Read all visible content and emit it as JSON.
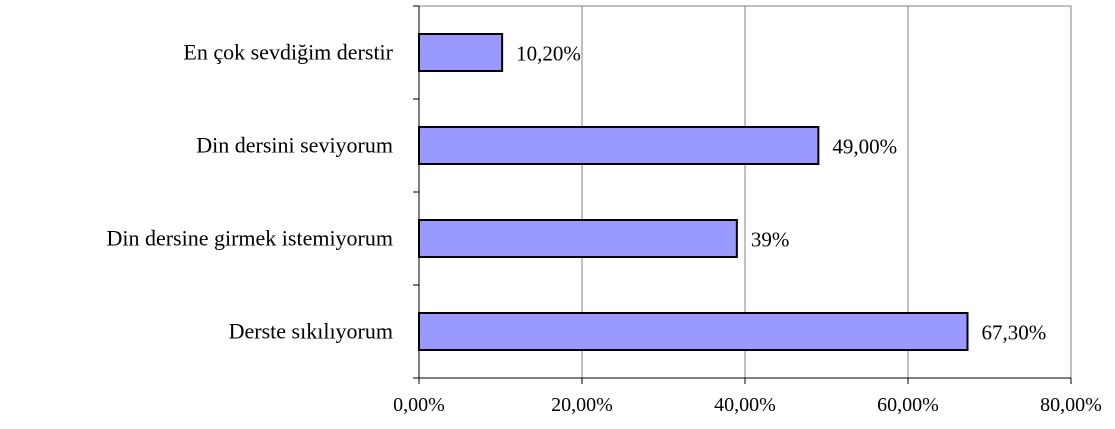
{
  "chart_data": {
    "type": "bar",
    "orientation": "horizontal",
    "categories": [
      "En çok sevdiğim derstir",
      "Din dersini seviyorum",
      "Din dersine girmek istemiyorum",
      "Derste sıkılıyorum"
    ],
    "values": [
      10.2,
      49.0,
      39.0,
      67.3
    ],
    "data_labels": [
      "10,20%",
      "49,00%",
      "39%",
      "67,30%"
    ],
    "x_ticks": [
      0,
      20,
      40,
      60,
      80
    ],
    "x_tick_labels": [
      "0,00%",
      "20,00%",
      "40,00%",
      "60,00%",
      "80,00%"
    ],
    "xlim": [
      0,
      80
    ],
    "grid": "vertical",
    "legend": "none",
    "colors": {
      "bar_fill": "#9999ff",
      "bar_stroke": "#000000",
      "grid": "#808080",
      "axis": "#000000"
    }
  }
}
